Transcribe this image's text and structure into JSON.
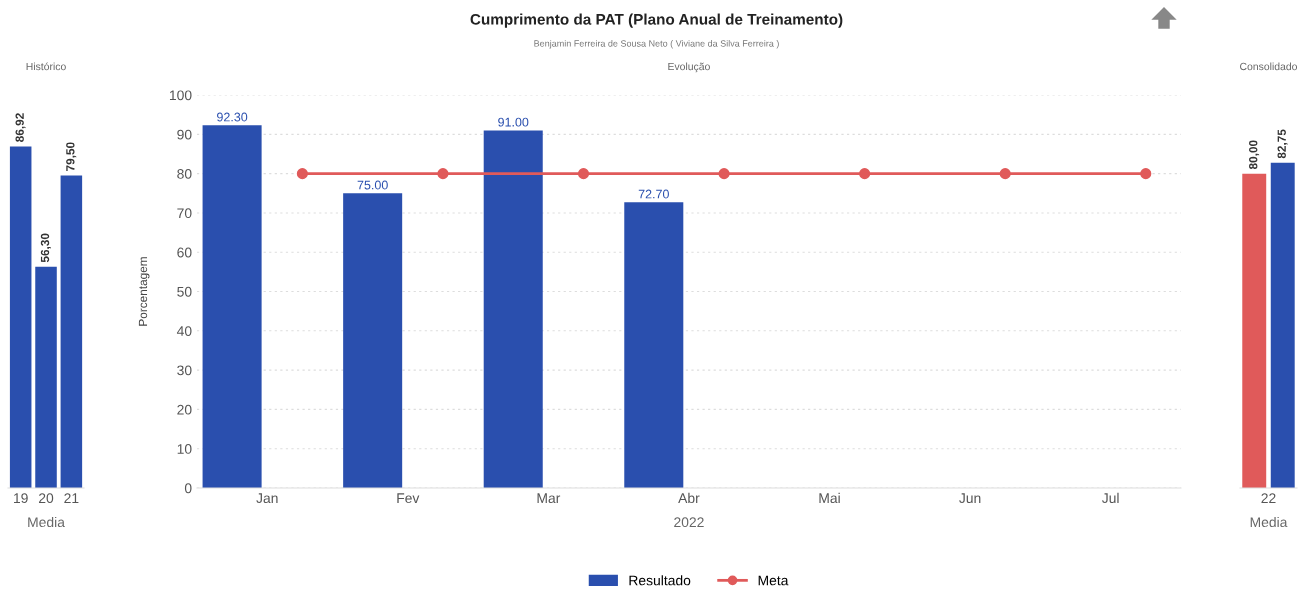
{
  "chart_data": [
    {
      "type": "bar",
      "title": "Histórico",
      "xlabel": "Media",
      "categories": [
        "19",
        "20",
        "21"
      ],
      "ylim": [
        0,
        100
      ],
      "tick_labels": "x",
      "series": [
        {
          "color": "#2a4fae",
          "values": [
            86.92,
            56.3,
            79.5
          ],
          "value_labels": [
            "86,92",
            "56,30",
            "79,50"
          ]
        }
      ]
    },
    {
      "type": "bar",
      "title": "Evolução",
      "xlabel": "2022",
      "ylabel": "Porcentagem",
      "annotations": [
        "Cumprimento da PAT (Plano Anual de Treinamento)",
        "Benjamin Ferreira de Sousa Neto ( Viviane da Silva Ferreira )"
      ],
      "categories": [
        "Jan",
        "Fev",
        "Mar",
        "Abr",
        "Mai",
        "Jun",
        "Jul"
      ],
      "ylim": [
        0,
        100
      ],
      "yticks": [
        0,
        10,
        20,
        30,
        40,
        50,
        60,
        70,
        80,
        90,
        100
      ],
      "grid": "y",
      "legend": "bottom",
      "series": [
        {
          "name": "Resultado",
          "type": "bar",
          "color": "#2a4fae",
          "values": [
            92.3,
            75.0,
            91.0,
            72.7,
            null,
            null,
            null
          ],
          "value_labels": [
            "92.30",
            "75.00",
            "91.00",
            "72.70",
            null,
            null,
            null
          ]
        },
        {
          "name": "Meta",
          "type": "line",
          "color": "#e05a5a",
          "marker": "circle",
          "values": [
            80,
            80,
            80,
            80,
            80,
            80,
            80
          ]
        }
      ]
    },
    {
      "type": "bar",
      "title": "Consolidado",
      "xlabel": "Media",
      "categories": [
        "22"
      ],
      "ylim": [
        0,
        100
      ],
      "tick_labels": "x",
      "series": [
        {
          "color": "#e05a5a",
          "values": [
            80.0
          ],
          "value_labels": [
            "80,00"
          ]
        },
        {
          "color": "#2a4fae",
          "values": [
            82.75
          ],
          "value_labels": [
            "82,75"
          ]
        }
      ]
    }
  ]
}
